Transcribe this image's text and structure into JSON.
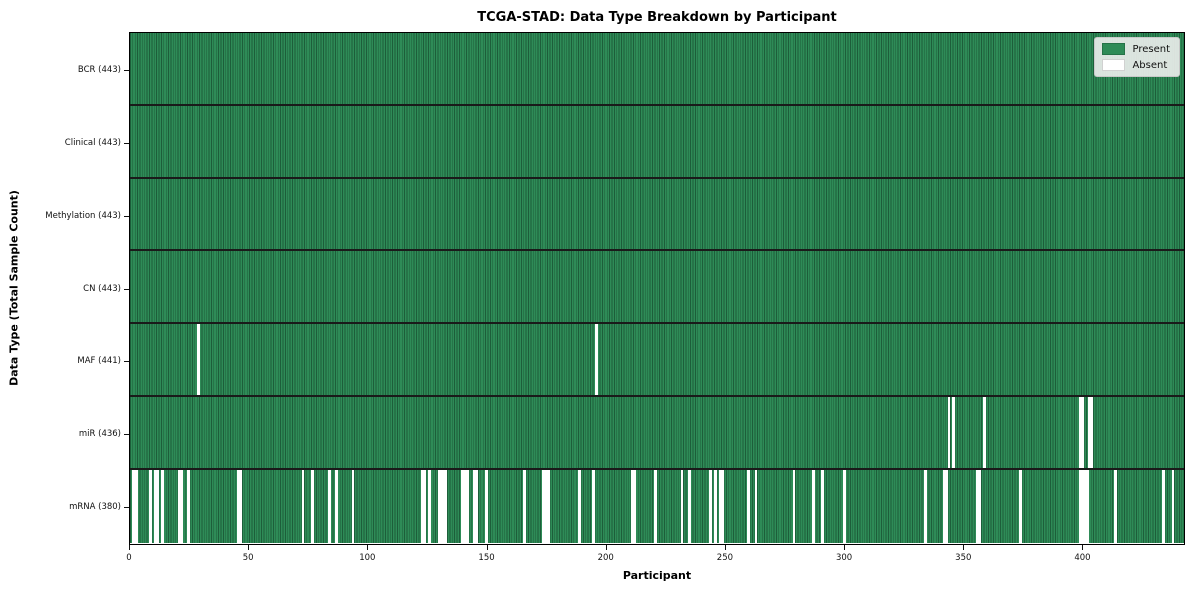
{
  "chart_data": {
    "type": "heatmap",
    "title": "TCGA-STAD: Data Type Breakdown by Participant",
    "xlabel": "Participant",
    "ylabel": "Data Type (Total Sample Count)",
    "n_participants": 443,
    "x_ticks": [
      0,
      50,
      100,
      150,
      200,
      250,
      300,
      350,
      400
    ],
    "grid": "cell-borders",
    "legend_position": "upper-right",
    "legend": [
      {
        "label": "Present",
        "color": "#2e8b57"
      },
      {
        "label": "Absent",
        "color": "#ffffff"
      }
    ],
    "colors": {
      "present": "#2e8b57",
      "absent": "#ffffff",
      "cell_border": "rgba(8, 38, 22, 0.45)",
      "row_separator": "#1a1a1a",
      "axis": "#000000"
    },
    "rows": [
      {
        "name": "BCR",
        "label": "BCR (443)",
        "total": 443,
        "absent": []
      },
      {
        "name": "Clinical",
        "label": "Clinical (443)",
        "total": 443,
        "absent": []
      },
      {
        "name": "Methylation",
        "label": "Methylation (443)",
        "total": 443,
        "absent": []
      },
      {
        "name": "CN",
        "label": "CN (443)",
        "total": 443,
        "absent": []
      },
      {
        "name": "MAF",
        "label": "MAF (441)",
        "total": 441,
        "absent": [
          28,
          195
        ]
      },
      {
        "name": "miR",
        "label": "miR (436)",
        "total": 436,
        "absent": [
          343,
          345,
          358,
          398,
          399,
          402,
          403
        ]
      },
      {
        "name": "mRNA",
        "label": "mRNA (380)",
        "total": 380,
        "absent": [
          1,
          2,
          8,
          10,
          11,
          13,
          20,
          21,
          24,
          45,
          46,
          72,
          76,
          83,
          86,
          93,
          122,
          123,
          125,
          129,
          130,
          131,
          132,
          139,
          140,
          141,
          144,
          145,
          149,
          165,
          173,
          174,
          175,
          188,
          194,
          210,
          211,
          220,
          231,
          234,
          243,
          245,
          247,
          248,
          259,
          262,
          278,
          286,
          290,
          299,
          333,
          341,
          342,
          355,
          356,
          373,
          398,
          399,
          400,
          401,
          413,
          433,
          437
        ]
      }
    ]
  }
}
